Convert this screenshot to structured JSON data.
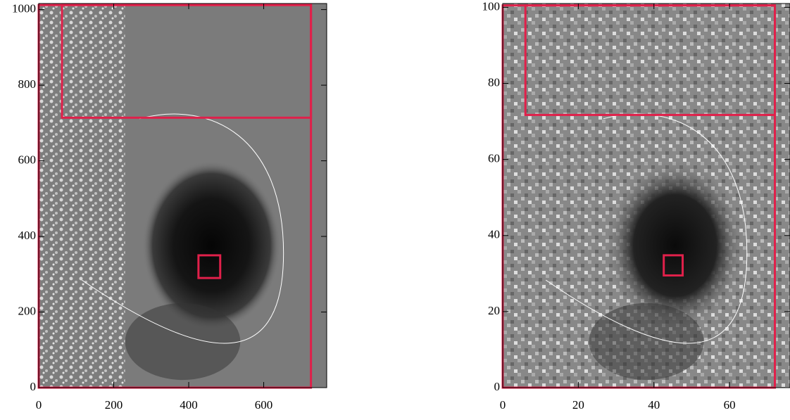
{
  "chart_data": [
    {
      "type": "image",
      "xlim": [
        0,
        768
      ],
      "ylim": [
        0,
        1016
      ],
      "xticks": [
        0,
        200,
        400,
        600
      ],
      "yticks": [
        0,
        200,
        400,
        600,
        800,
        1000
      ],
      "regions": [
        {
          "x": [
            0,
            726
          ],
          "y": [
            0,
            1012
          ]
        },
        {
          "x": [
            62,
            726
          ],
          "y": [
            714,
            1012
          ]
        },
        {
          "x": [
            426,
            484
          ],
          "y": [
            290,
            350
          ]
        }
      ],
      "color": "#e0204a"
    },
    {
      "type": "image",
      "xlim": [
        0,
        76
      ],
      "ylim": [
        0,
        101
      ],
      "xticks": [
        0,
        20,
        40,
        60
      ],
      "yticks": [
        0,
        20,
        40,
        60,
        80,
        100
      ],
      "regions": [
        {
          "x": [
            0,
            72
          ],
          "y": [
            0,
            100.5
          ]
        },
        {
          "x": [
            6,
            72
          ],
          "y": [
            71.7,
            100.5
          ]
        },
        {
          "x": [
            42.6,
            47.6
          ],
          "y": [
            29.5,
            34.8
          ]
        }
      ],
      "color": "#e0204a"
    }
  ]
}
